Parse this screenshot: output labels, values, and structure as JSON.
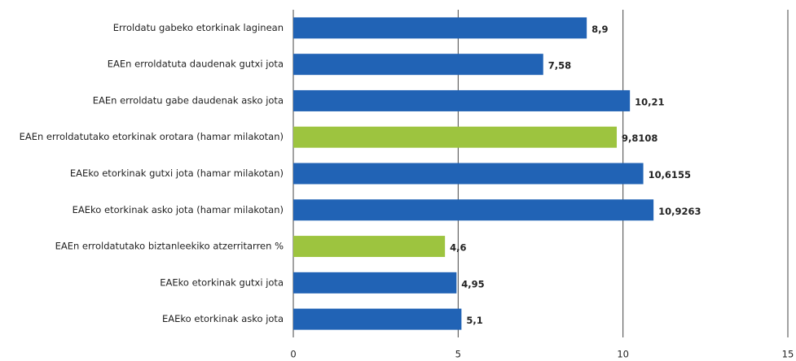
{
  "chart_data": {
    "type": "barh",
    "categories": [
      "Erroldatu gabeko etorkinak laginean",
      "EAEn erroldatuta daudenak gutxi jota",
      "EAEn erroldatu gabe daudenak asko jota",
      "EAEn erroldatutako etorkinak orotara (hamar milakotan)",
      "EAEko etorkinak gutxi jota (hamar milakotan)",
      "EAEko etorkinak asko jota (hamar milakotan)",
      "EAEn erroldatutako biztanleekiko atzerritarren %",
      "EAEko etorkinak gutxi jota",
      "EAEko etorkinak asko jota"
    ],
    "values": [
      8.9,
      7.58,
      10.21,
      9.8108,
      10.6155,
      10.9263,
      4.6,
      4.95,
      5.1
    ],
    "value_labels": [
      "8,9",
      "7,58",
      "10,21",
      "9,8108",
      "10,6155",
      "10,9263",
      "4,6",
      "4,95",
      "5,1"
    ],
    "colors": [
      "#2163b5",
      "#2163b5",
      "#2163b5",
      "#9dc43f",
      "#2163b5",
      "#2163b5",
      "#9dc43f",
      "#2163b5",
      "#2163b5"
    ],
    "xlim": [
      0,
      15
    ],
    "xticks": [
      0,
      5,
      10,
      15
    ],
    "grid": true
  }
}
